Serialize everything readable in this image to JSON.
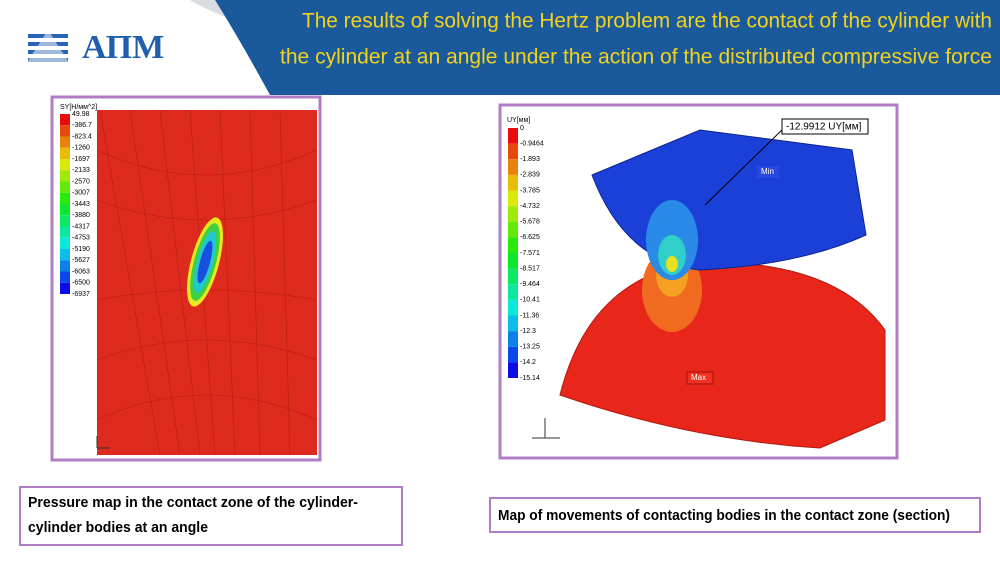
{
  "header": {
    "logo": "АПМ",
    "title_lines": [
      "The results of solving the Hertz problem are the contact of the cylinder with",
      "the cylinder at an angle under the action of the distributed compressive force"
    ]
  },
  "left_panel": {
    "legend_title": "SY[Н/мм^2]",
    "legend_values": [
      "49.98",
      "-386.7",
      "-823.4",
      "-1260",
      "-1697",
      "-2133",
      "-2570",
      "-3007",
      "-3443",
      "-3880",
      "-4317",
      "-4753",
      "-5190",
      "-5627",
      "-6063",
      "-6500",
      "-6937"
    ],
    "caption_lines": [
      "Pressure map in the contact zone of the cylinder-",
      "cylinder bodies at an angle"
    ]
  },
  "right_panel": {
    "legend_title": "UY[мм]",
    "legend_values": [
      "0",
      "-0.9464",
      "-1.893",
      "-2.839",
      "-3.785",
      "-4.732",
      "-5.678",
      "-6.625",
      "-7.571",
      "-8.517",
      "-9.464",
      "-10.41",
      "-11.36",
      "-12.3",
      "-13.25",
      "-14.2",
      "-15.14"
    ],
    "annotation": "-12.9912 UY[мм]",
    "min_label": "Min",
    "max_label": "Max",
    "caption": "Map of movements of contacting bodies in the contact zone (section)"
  }
}
